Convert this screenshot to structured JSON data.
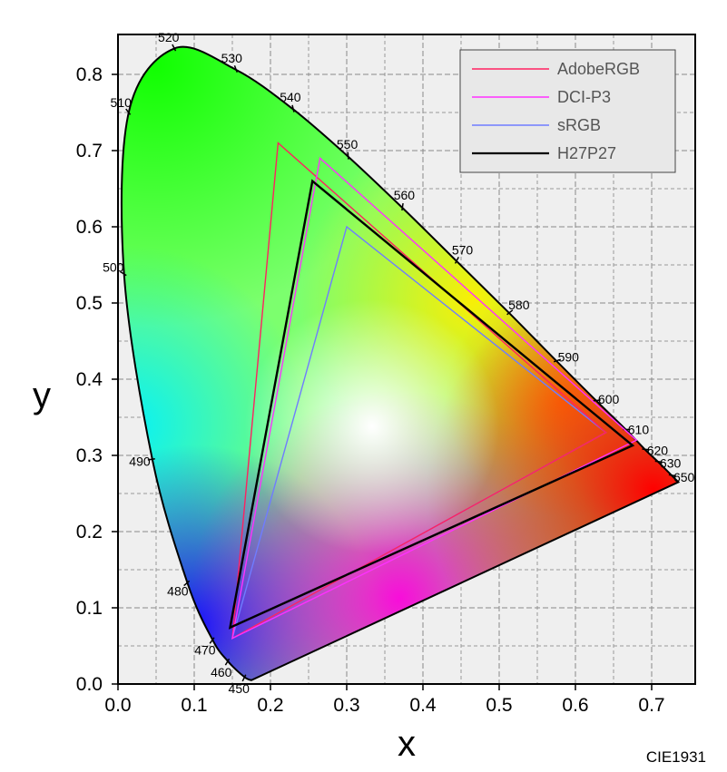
{
  "footer": "CIE1931",
  "colors": {
    "background": "#ffffff",
    "plot_background": "#efefef",
    "AdobeRGB": "#ff2060",
    "DCI-P3": "#ff30ff",
    "sRGB": "#6f7cff",
    "H27P27": "#000000"
  },
  "chart_data": {
    "type": "scatter",
    "title": "",
    "xlabel": "x",
    "ylabel": "y",
    "xlim": [
      0,
      0.75
    ],
    "ylim": [
      0,
      0.85
    ],
    "x_ticks": [
      "0.0",
      "0.1",
      "0.2",
      "0.3",
      "0.4",
      "0.5",
      "0.6",
      "0.7"
    ],
    "y_ticks": [
      "0.0",
      "0.1",
      "0.2",
      "0.3",
      "0.4",
      "0.5",
      "0.6",
      "0.7",
      "0.8"
    ],
    "grid": true,
    "legend_position": "top-right",
    "series": [
      {
        "name": "AdobeRGB",
        "x": [
          0.64,
          0.21,
          0.15
        ],
        "y": [
          0.33,
          0.71,
          0.06
        ]
      },
      {
        "name": "DCI-P3",
        "x": [
          0.68,
          0.265,
          0.15
        ],
        "y": [
          0.32,
          0.69,
          0.06
        ]
      },
      {
        "name": "sRGB",
        "x": [
          0.64,
          0.3,
          0.15
        ],
        "y": [
          0.33,
          0.6,
          0.06
        ]
      },
      {
        "name": "H27P27",
        "x": [
          0.675,
          0.255,
          0.147
        ],
        "y": [
          0.313,
          0.66,
          0.074
        ]
      }
    ],
    "locus_annotations": [
      {
        "label": "450",
        "x": 0.166,
        "y": 0.009
      },
      {
        "label": "460",
        "x": 0.144,
        "y": 0.03
      },
      {
        "label": "470",
        "x": 0.124,
        "y": 0.058
      },
      {
        "label": "480",
        "x": 0.091,
        "y": 0.133
      },
      {
        "label": "490",
        "x": 0.045,
        "y": 0.295
      },
      {
        "label": "500",
        "x": 0.008,
        "y": 0.538
      },
      {
        "label": "510",
        "x": 0.014,
        "y": 0.75
      },
      {
        "label": "520",
        "x": 0.074,
        "y": 0.834
      },
      {
        "label": "530",
        "x": 0.155,
        "y": 0.806
      },
      {
        "label": "540",
        "x": 0.23,
        "y": 0.754
      },
      {
        "label": "550",
        "x": 0.302,
        "y": 0.692
      },
      {
        "label": "560",
        "x": 0.373,
        "y": 0.625
      },
      {
        "label": "570",
        "x": 0.444,
        "y": 0.555
      },
      {
        "label": "580",
        "x": 0.513,
        "y": 0.487
      },
      {
        "label": "590",
        "x": 0.575,
        "y": 0.424
      },
      {
        "label": "600",
        "x": 0.627,
        "y": 0.372
      },
      {
        "label": "610",
        "x": 0.666,
        "y": 0.334
      },
      {
        "label": "620",
        "x": 0.691,
        "y": 0.308
      },
      {
        "label": "630",
        "x": 0.708,
        "y": 0.292
      },
      {
        "label": "650",
        "x": 0.726,
        "y": 0.274
      }
    ]
  }
}
